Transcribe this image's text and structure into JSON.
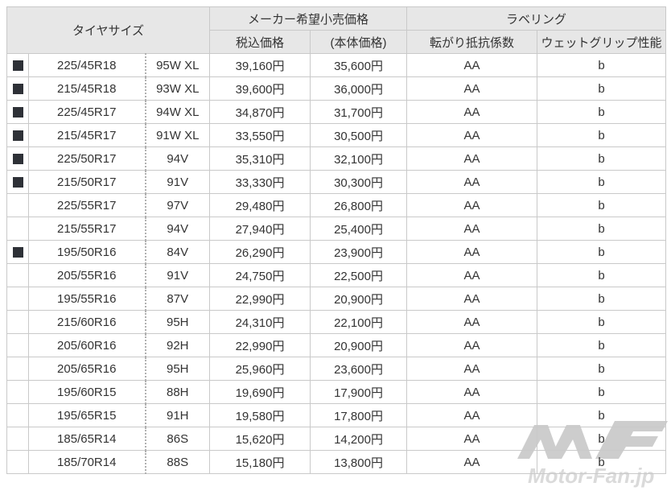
{
  "chart_data": {
    "type": "table",
    "header_groups": [
      {
        "label": "タイヤサイズ",
        "colspan": 3,
        "rowspan": 2
      },
      {
        "label": "メーカー希望小売価格",
        "colspan": 2,
        "children": [
          "税込価格",
          "(本体価格)"
        ]
      },
      {
        "label": "ラベリング",
        "colspan": 2,
        "children": [
          "転がり抵抗係数",
          "ウェットグリップ性能"
        ]
      }
    ],
    "rows": [
      {
        "marked": true,
        "size": "225/45R18",
        "rating": "95W XL",
        "price_tax": "39,160円",
        "price_base": "35,600円",
        "rolling_resistance": "AA",
        "wet_grip": "b"
      },
      {
        "marked": true,
        "size": "215/45R18",
        "rating": "93W XL",
        "price_tax": "39,600円",
        "price_base": "36,000円",
        "rolling_resistance": "AA",
        "wet_grip": "b"
      },
      {
        "marked": true,
        "size": "225/45R17",
        "rating": "94W XL",
        "price_tax": "34,870円",
        "price_base": "31,700円",
        "rolling_resistance": "AA",
        "wet_grip": "b"
      },
      {
        "marked": true,
        "size": "215/45R17",
        "rating": "91W XL",
        "price_tax": "33,550円",
        "price_base": "30,500円",
        "rolling_resistance": "AA",
        "wet_grip": "b"
      },
      {
        "marked": true,
        "size": "225/50R17",
        "rating": "94V",
        "price_tax": "35,310円",
        "price_base": "32,100円",
        "rolling_resistance": "AA",
        "wet_grip": "b"
      },
      {
        "marked": true,
        "size": "215/50R17",
        "rating": "91V",
        "price_tax": "33,330円",
        "price_base": "30,300円",
        "rolling_resistance": "AA",
        "wet_grip": "b"
      },
      {
        "marked": false,
        "size": "225/55R17",
        "rating": "97V",
        "price_tax": "29,480円",
        "price_base": "26,800円",
        "rolling_resistance": "AA",
        "wet_grip": "b"
      },
      {
        "marked": false,
        "size": "215/55R17",
        "rating": "94V",
        "price_tax": "27,940円",
        "price_base": "25,400円",
        "rolling_resistance": "AA",
        "wet_grip": "b"
      },
      {
        "marked": true,
        "size": "195/50R16",
        "rating": "84V",
        "price_tax": "26,290円",
        "price_base": "23,900円",
        "rolling_resistance": "AA",
        "wet_grip": "b"
      },
      {
        "marked": false,
        "size": "205/55R16",
        "rating": "91V",
        "price_tax": "24,750円",
        "price_base": "22,500円",
        "rolling_resistance": "AA",
        "wet_grip": "b"
      },
      {
        "marked": false,
        "size": "195/55R16",
        "rating": "87V",
        "price_tax": "22,990円",
        "price_base": "20,900円",
        "rolling_resistance": "AA",
        "wet_grip": "b"
      },
      {
        "marked": false,
        "size": "215/60R16",
        "rating": "95H",
        "price_tax": "24,310円",
        "price_base": "22,100円",
        "rolling_resistance": "AA",
        "wet_grip": "b"
      },
      {
        "marked": false,
        "size": "205/60R16",
        "rating": "92H",
        "price_tax": "22,990円",
        "price_base": "20,900円",
        "rolling_resistance": "AA",
        "wet_grip": "b"
      },
      {
        "marked": false,
        "size": "205/65R16",
        "rating": "95H",
        "price_tax": "25,960円",
        "price_base": "23,600円",
        "rolling_resistance": "AA",
        "wet_grip": "b"
      },
      {
        "marked": false,
        "size": "195/60R15",
        "rating": "88H",
        "price_tax": "19,690円",
        "price_base": "17,900円",
        "rolling_resistance": "AA",
        "wet_grip": "b"
      },
      {
        "marked": false,
        "size": "195/65R15",
        "rating": "91H",
        "price_tax": "19,580円",
        "price_base": "17,800円",
        "rolling_resistance": "AA",
        "wet_grip": "b"
      },
      {
        "marked": false,
        "size": "185/65R14",
        "rating": "86S",
        "price_tax": "15,620円",
        "price_base": "14,200円",
        "rolling_resistance": "AA",
        "wet_grip": "b"
      },
      {
        "marked": false,
        "size": "185/70R14",
        "rating": "88S",
        "price_tax": "15,180円",
        "price_base": "13,800円",
        "rolling_resistance": "AA",
        "wet_grip": "b"
      }
    ]
  },
  "watermark": {
    "text": "Motor-Fan.jp"
  },
  "colors": {
    "header_bg": "#e7e7e7",
    "border": "#c9c9c9",
    "text": "#333333",
    "marker": "#2e3137",
    "watermark_logo": "#cdcdcd",
    "watermark_text": "#dadada"
  }
}
